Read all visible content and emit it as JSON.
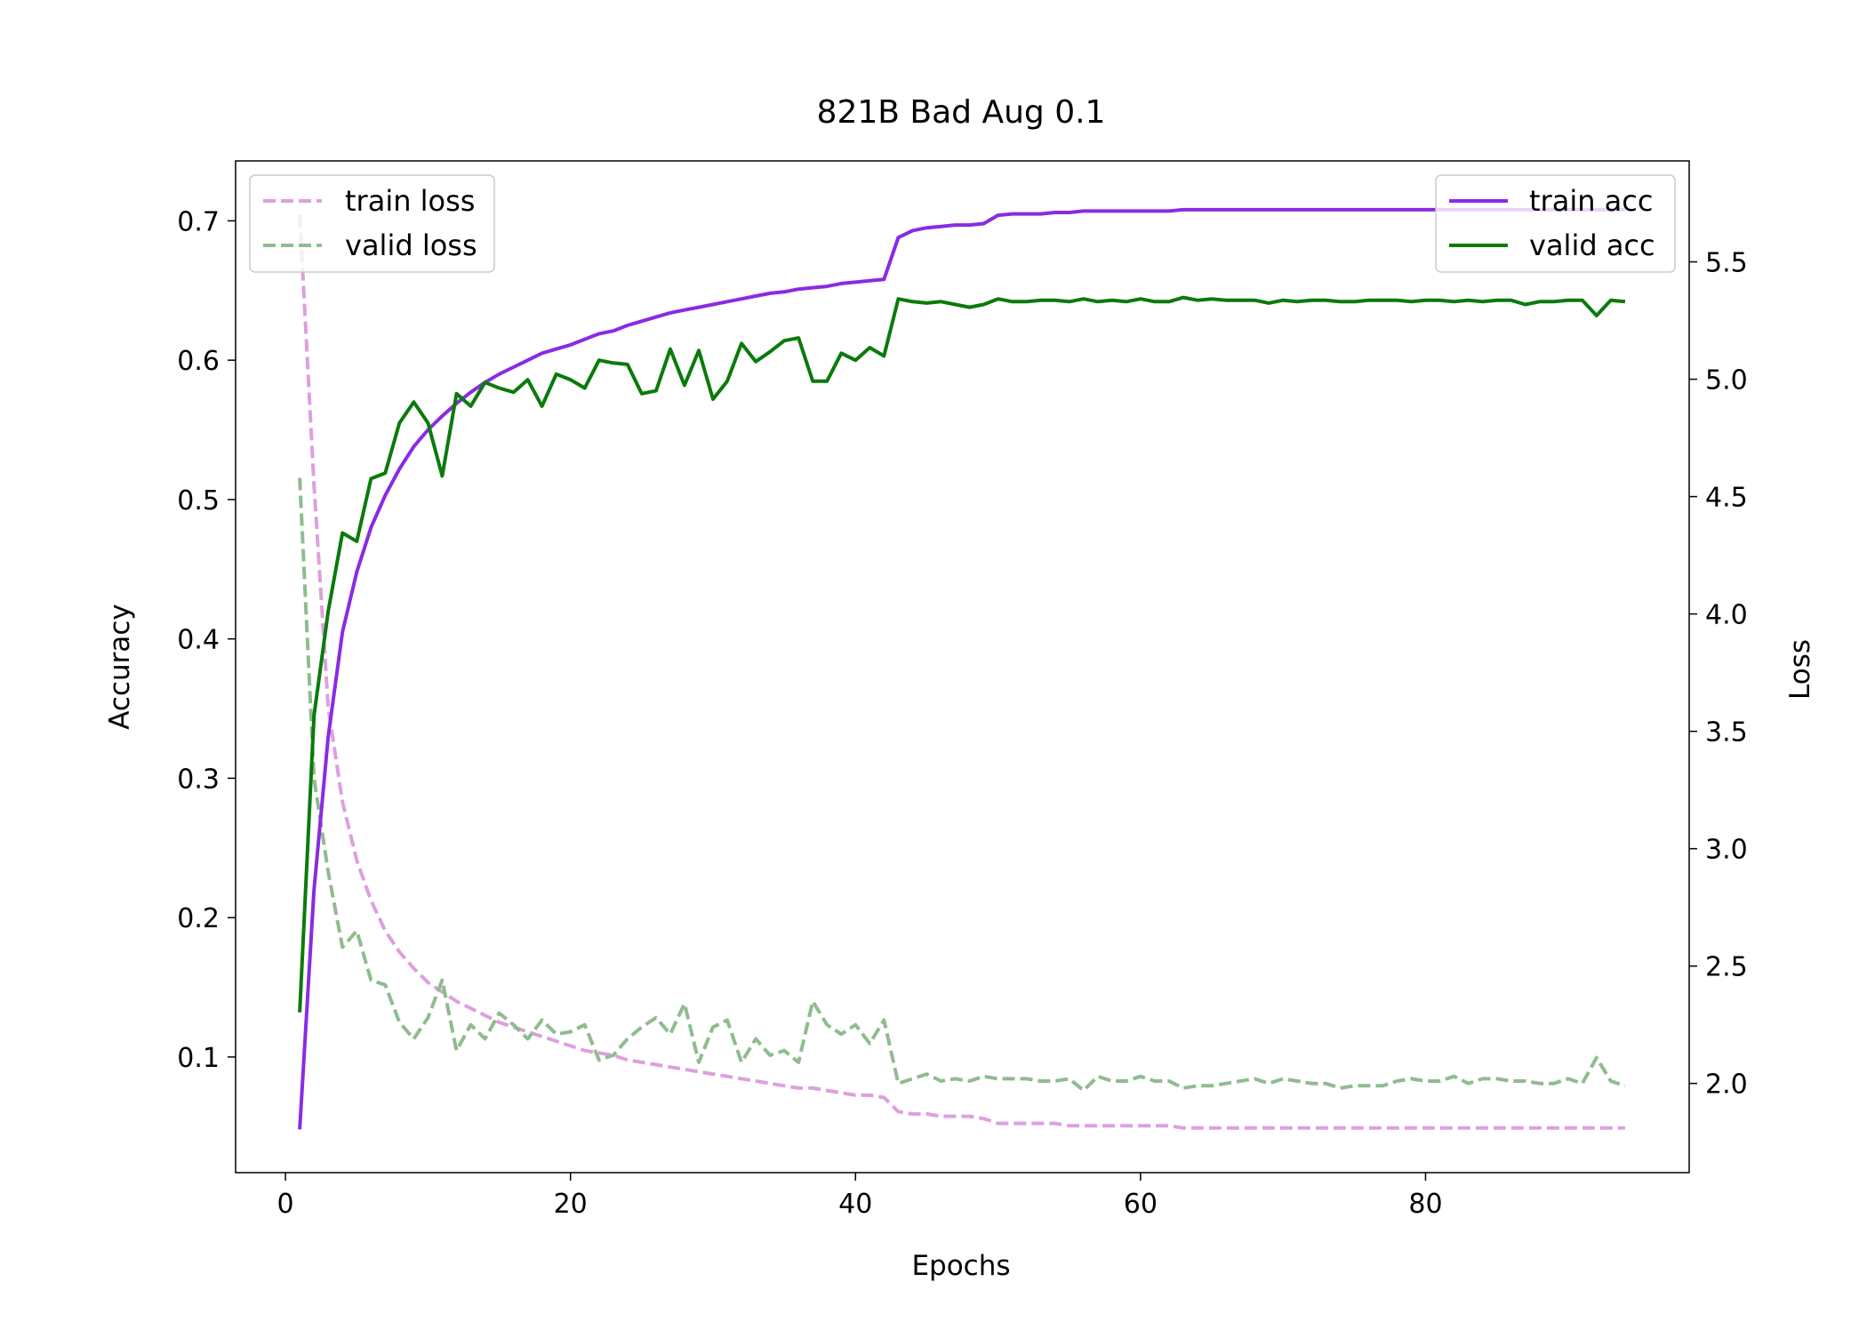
{
  "chart_data": {
    "type": "line",
    "title": "821B Bad Aug 0.1",
    "xlabel": "Epochs",
    "ylabel_left": "Accuracy",
    "ylabel_right": "Loss",
    "xlim": [
      -3.5,
      98.5
    ],
    "ylim_left": [
      0.017,
      0.743
    ],
    "ylim_right": [
      1.62,
      5.93
    ],
    "x_ticks": [
      0,
      20,
      40,
      60,
      80
    ],
    "y_ticks_left": [
      0.1,
      0.2,
      0.3,
      0.4,
      0.5,
      0.6,
      0.7
    ],
    "y_ticks_right": [
      2.0,
      2.5,
      3.0,
      3.5,
      4.0,
      4.5,
      5.0,
      5.5
    ],
    "y_tick_labels_left": [
      "0.1",
      "0.2",
      "0.3",
      "0.4",
      "0.5",
      "0.6",
      "0.7"
    ],
    "y_tick_labels_right": [
      "2.0",
      "2.5",
      "3.0",
      "3.5",
      "4.0",
      "4.5",
      "5.0",
      "5.5"
    ],
    "grid": false,
    "colors": {
      "train_acc": "#8a2be2",
      "valid_acc": "#0b7a0b",
      "train_loss": "#dda0dd",
      "valid_loss": "#8fbc8f"
    },
    "legend_left": {
      "placement": "upper-left",
      "entries": [
        "train loss",
        "valid loss"
      ]
    },
    "legend_right": {
      "placement": "upper-right",
      "entries": [
        "train acc",
        "valid acc"
      ]
    },
    "x": [
      1,
      2,
      3,
      4,
      5,
      6,
      7,
      8,
      9,
      10,
      11,
      12,
      13,
      14,
      15,
      16,
      17,
      18,
      19,
      20,
      21,
      22,
      23,
      24,
      25,
      26,
      27,
      28,
      29,
      30,
      31,
      32,
      33,
      34,
      35,
      36,
      37,
      38,
      39,
      40,
      41,
      42,
      43,
      44,
      45,
      46,
      47,
      48,
      49,
      50,
      51,
      52,
      53,
      54,
      55,
      56,
      57,
      58,
      59,
      60,
      61,
      62,
      63,
      64,
      65,
      66,
      67,
      68,
      69,
      70,
      71,
      72,
      73,
      74,
      75,
      76,
      77,
      78,
      79,
      80,
      81,
      82,
      83,
      84,
      85,
      86,
      87,
      88,
      89,
      90,
      91,
      92,
      93,
      94
    ],
    "series": [
      {
        "name": "train acc",
        "axis": "left",
        "style": "solid",
        "color": "#8a2be2",
        "values": [
          0.048,
          0.22,
          0.33,
          0.405,
          0.448,
          0.48,
          0.503,
          0.522,
          0.538,
          0.55,
          0.56,
          0.569,
          0.577,
          0.584,
          0.59,
          0.595,
          0.6,
          0.605,
          0.608,
          0.611,
          0.615,
          0.619,
          0.621,
          0.625,
          0.628,
          0.631,
          0.634,
          0.636,
          0.638,
          0.64,
          0.642,
          0.644,
          0.646,
          0.648,
          0.649,
          0.651,
          0.652,
          0.653,
          0.655,
          0.656,
          0.657,
          0.658,
          0.688,
          0.693,
          0.695,
          0.696,
          0.697,
          0.697,
          0.698,
          0.704,
          0.705,
          0.705,
          0.705,
          0.706,
          0.706,
          0.707,
          0.707,
          0.707,
          0.707,
          0.707,
          0.707,
          0.707,
          0.708,
          0.708,
          0.708,
          0.708,
          0.708,
          0.708,
          0.708,
          0.708,
          0.708,
          0.708,
          0.708,
          0.708,
          0.708,
          0.708,
          0.708,
          0.708,
          0.708,
          0.708,
          0.708,
          0.708,
          0.708,
          0.708,
          0.708,
          0.708,
          0.708,
          0.708,
          0.708,
          0.708,
          0.708,
          0.708,
          0.708,
          0.708
        ]
      },
      {
        "name": "valid acc",
        "axis": "left",
        "style": "solid",
        "color": "#0b7a0b",
        "values": [
          0.132,
          0.345,
          0.42,
          0.476,
          0.47,
          0.515,
          0.519,
          0.555,
          0.57,
          0.555,
          0.517,
          0.576,
          0.567,
          0.584,
          0.58,
          0.577,
          0.586,
          0.567,
          0.59,
          0.586,
          0.58,
          0.6,
          0.598,
          0.597,
          0.576,
          0.578,
          0.608,
          0.582,
          0.607,
          0.572,
          0.585,
          0.612,
          0.599,
          0.606,
          0.614,
          0.616,
          0.585,
          0.585,
          0.605,
          0.6,
          0.609,
          0.603,
          0.644,
          0.642,
          0.641,
          0.642,
          0.64,
          0.638,
          0.64,
          0.644,
          0.642,
          0.642,
          0.643,
          0.643,
          0.642,
          0.644,
          0.642,
          0.643,
          0.642,
          0.644,
          0.642,
          0.642,
          0.645,
          0.643,
          0.644,
          0.643,
          0.643,
          0.643,
          0.641,
          0.643,
          0.642,
          0.643,
          0.643,
          0.642,
          0.642,
          0.643,
          0.643,
          0.643,
          0.642,
          0.643,
          0.643,
          0.642,
          0.643,
          0.642,
          0.643,
          0.643,
          0.64,
          0.642,
          0.642,
          0.643,
          0.643,
          0.632,
          0.643,
          0.642
        ]
      },
      {
        "name": "train loss",
        "axis": "right",
        "style": "dashed",
        "color": "#dda0dd",
        "values": [
          5.7,
          4.55,
          3.6,
          3.2,
          2.95,
          2.78,
          2.65,
          2.56,
          2.49,
          2.43,
          2.39,
          2.35,
          2.32,
          2.29,
          2.26,
          2.24,
          2.22,
          2.2,
          2.18,
          2.16,
          2.14,
          2.13,
          2.12,
          2.1,
          2.09,
          2.08,
          2.07,
          2.06,
          2.05,
          2.04,
          2.03,
          2.02,
          2.01,
          2.0,
          1.99,
          1.98,
          1.98,
          1.97,
          1.96,
          1.95,
          1.95,
          1.94,
          1.88,
          1.87,
          1.87,
          1.86,
          1.86,
          1.86,
          1.85,
          1.83,
          1.83,
          1.83,
          1.83,
          1.83,
          1.82,
          1.82,
          1.82,
          1.82,
          1.82,
          1.82,
          1.82,
          1.82,
          1.81,
          1.81,
          1.81,
          1.81,
          1.81,
          1.81,
          1.81,
          1.81,
          1.81,
          1.81,
          1.81,
          1.81,
          1.81,
          1.81,
          1.81,
          1.81,
          1.81,
          1.81,
          1.81,
          1.81,
          1.81,
          1.81,
          1.81,
          1.81,
          1.81,
          1.81,
          1.81,
          1.81,
          1.81,
          1.81,
          1.81,
          1.81
        ]
      },
      {
        "name": "valid loss",
        "axis": "right",
        "style": "dashed",
        "color": "#8fbc8f",
        "values": [
          4.58,
          3.3,
          2.9,
          2.58,
          2.65,
          2.44,
          2.42,
          2.26,
          2.19,
          2.28,
          2.44,
          2.14,
          2.25,
          2.19,
          2.3,
          2.25,
          2.19,
          2.27,
          2.21,
          2.22,
          2.25,
          2.1,
          2.12,
          2.19,
          2.24,
          2.28,
          2.21,
          2.34,
          2.09,
          2.24,
          2.27,
          2.09,
          2.19,
          2.12,
          2.14,
          2.09,
          2.35,
          2.25,
          2.21,
          2.25,
          2.17,
          2.27,
          2.0,
          2.02,
          2.04,
          2.01,
          2.02,
          2.01,
          2.03,
          2.02,
          2.02,
          2.02,
          2.01,
          2.01,
          2.02,
          1.97,
          2.03,
          2.01,
          2.01,
          2.03,
          2.01,
          2.01,
          1.98,
          1.99,
          1.99,
          2.0,
          2.01,
          2.02,
          2.0,
          2.02,
          2.01,
          2.0,
          2.0,
          1.98,
          1.99,
          1.99,
          1.99,
          2.01,
          2.02,
          2.01,
          2.01,
          2.03,
          2.0,
          2.02,
          2.02,
          2.01,
          2.01,
          2.0,
          2.0,
          2.02,
          2.0,
          2.11,
          2.01,
          1.99
        ]
      }
    ]
  }
}
